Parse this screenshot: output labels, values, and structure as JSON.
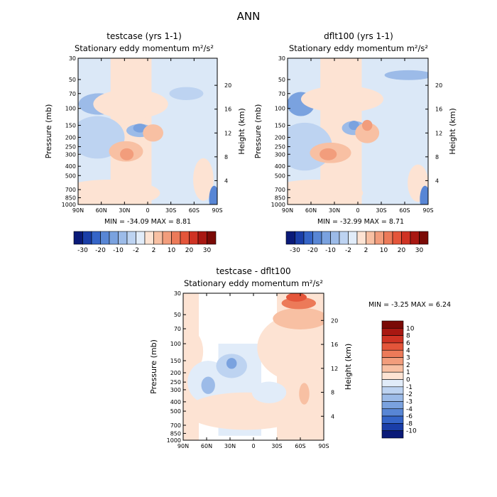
{
  "figure_title": "ANN",
  "colors": {
    "ocean_blue_fill": "#dbe8f7",
    "pos": [
      "#fde3d3",
      "#f8c0a3",
      "#f29d7c",
      "#ec7a59",
      "#e4553a",
      "#cf3324",
      "#a81812",
      "#7a0a06"
    ],
    "neg": [
      "#e1ecf9",
      "#bdd3f1",
      "#9cbbe8",
      "#7aa2df",
      "#5886d5",
      "#3565c8",
      "#1a3ea8",
      "#0a1a78"
    ]
  },
  "chart_data": [
    {
      "type": "heatmap",
      "panel": "testcase",
      "title": "testcase (yrs 1-1)",
      "subtitle": "Stationary eddy momentum  m²/s²",
      "ylabel": "Pressure (mb)",
      "ylabel_right": "Height (km)",
      "x_ticks": [
        "90N",
        "60N",
        "30N",
        "0",
        "30S",
        "60S",
        "90S"
      ],
      "x_values": [
        90,
        60,
        30,
        0,
        -30,
        -60,
        -90
      ],
      "y_ticks": [
        "30",
        "50",
        "70",
        "100",
        "150",
        "200",
        "250",
        "300",
        "400",
        "500",
        "700",
        "850",
        "1000"
      ],
      "y_values": [
        30,
        50,
        70,
        100,
        150,
        200,
        250,
        300,
        400,
        500,
        700,
        850,
        1000
      ],
      "right_ticks": [
        "20",
        "16",
        "12",
        "8",
        "4"
      ],
      "right_values": [
        20,
        16,
        12,
        8,
        4
      ],
      "ylim": [
        1000,
        30
      ],
      "xlim": [
        90,
        -90
      ],
      "min_label": "MIN = -34.09",
      "max_label": "MAX =    8.81",
      "min": -34.09,
      "max": 8.81,
      "colorbar_labels": [
        "-30",
        "-20",
        "-10",
        "-2",
        "2",
        "10",
        "20",
        "30"
      ]
    },
    {
      "type": "heatmap",
      "panel": "dflt100",
      "title": "dflt100 (yrs 1-1)",
      "subtitle": "Stationary eddy momentum  m²/s²",
      "ylabel": "Pressure (mb)",
      "ylabel_right": "Height (km)",
      "x_ticks": [
        "90N",
        "60N",
        "30N",
        "0",
        "30S",
        "60S",
        "90S"
      ],
      "x_values": [
        90,
        60,
        30,
        0,
        -30,
        -60,
        -90
      ],
      "y_ticks": [
        "30",
        "50",
        "70",
        "100",
        "150",
        "200",
        "250",
        "300",
        "400",
        "500",
        "700",
        "850",
        "1000"
      ],
      "y_values": [
        30,
        50,
        70,
        100,
        150,
        200,
        250,
        300,
        400,
        500,
        700,
        850,
        1000
      ],
      "right_ticks": [
        "20",
        "16",
        "12",
        "8",
        "4"
      ],
      "right_values": [
        20,
        16,
        12,
        8,
        4
      ],
      "ylim": [
        1000,
        30
      ],
      "xlim": [
        90,
        -90
      ],
      "min_label": "MIN = -32.99",
      "max_label": "MAX =    8.71",
      "min": -32.99,
      "max": 8.71,
      "colorbar_labels": [
        "-30",
        "-20",
        "-10",
        "-2",
        "2",
        "10",
        "20",
        "30"
      ]
    },
    {
      "type": "heatmap",
      "panel": "difference",
      "title": "testcase - dflt100",
      "subtitle": "Stationary eddy momentum  m²/s²",
      "ylabel": "Pressure (mb)",
      "ylabel_right": "Height (km)",
      "x_ticks": [
        "90N",
        "60N",
        "30N",
        "0",
        "30S",
        "60S",
        "90S"
      ],
      "x_values": [
        90,
        60,
        30,
        0,
        -30,
        -60,
        -90
      ],
      "y_ticks": [
        "30",
        "50",
        "70",
        "100",
        "150",
        "200",
        "250",
        "300",
        "400",
        "500",
        "700",
        "850",
        "1000"
      ],
      "y_values": [
        30,
        50,
        70,
        100,
        150,
        200,
        250,
        300,
        400,
        500,
        700,
        850,
        1000
      ],
      "right_ticks": [
        "20",
        "16",
        "12",
        "8",
        "4"
      ],
      "right_values": [
        20,
        16,
        12,
        8,
        4
      ],
      "ylim": [
        1000,
        30
      ],
      "xlim": [
        90,
        -90
      ],
      "min_label": "MIN =   -3.25",
      "max_label": "MAX =    6.24",
      "min": -3.25,
      "max": 6.24,
      "colorbar_labels": [
        "10",
        "8",
        "6",
        "4",
        "3",
        "2",
        "1",
        "0",
        "-1",
        "-2",
        "-3",
        "-4",
        "-6",
        "-8",
        "-10"
      ]
    }
  ]
}
